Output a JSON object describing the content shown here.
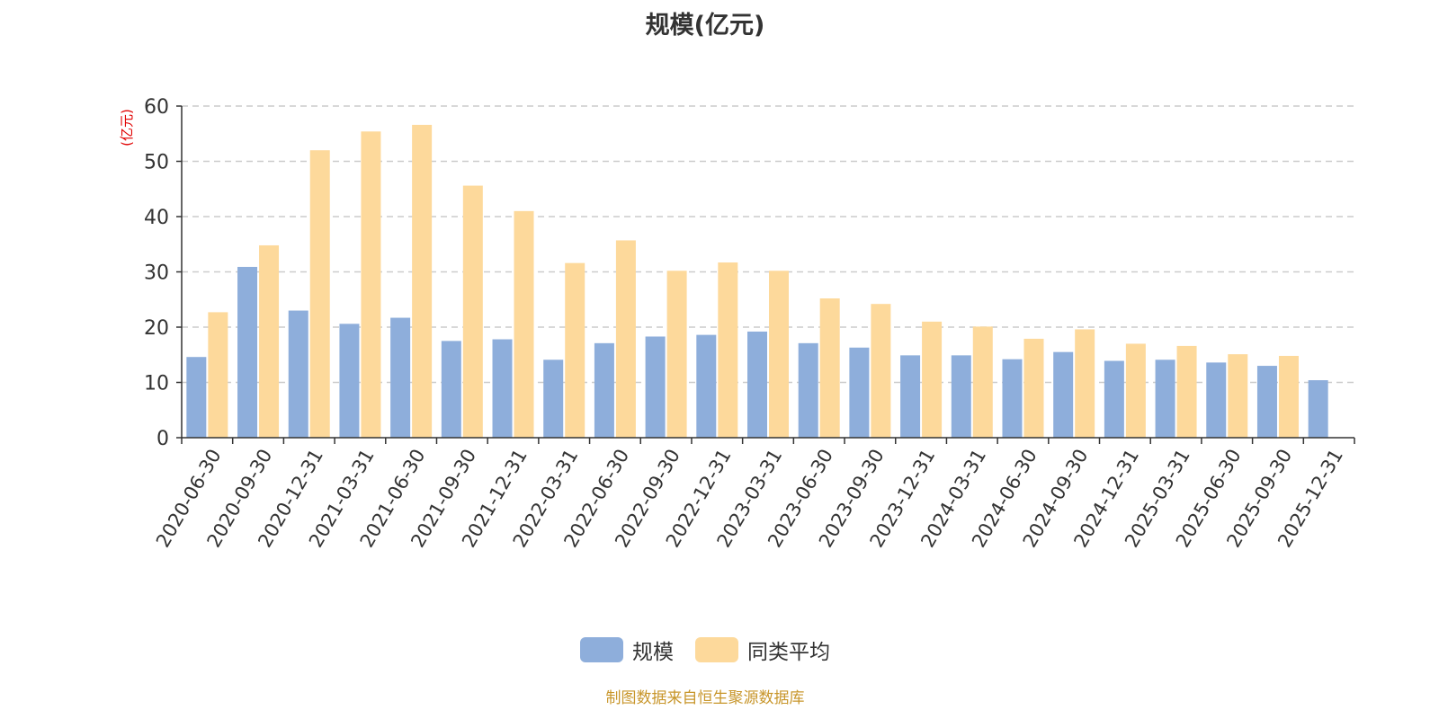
{
  "chart_data": {
    "type": "bar",
    "title": "规模(亿元)",
    "ylabel": "(亿元)",
    "ylim": [
      0,
      60
    ],
    "yticks": [
      0,
      10,
      20,
      30,
      40,
      50,
      60
    ],
    "grid": true,
    "legend_position": "bottom-center",
    "categories": [
      "2020-06-30",
      "2020-09-30",
      "2020-12-31",
      "2021-03-31",
      "2021-06-30",
      "2021-09-30",
      "2021-12-31",
      "2022-03-31",
      "2022-06-30",
      "2022-09-30",
      "2022-12-31",
      "2023-03-31",
      "2023-06-30",
      "2023-09-30",
      "2023-12-31",
      "2024-03-31",
      "2024-06-30",
      "2024-09-30",
      "2024-12-31",
      "2025-03-31",
      "2025-06-30",
      "2025-09-30",
      "2025-12-31"
    ],
    "series": [
      {
        "name": "规模",
        "color": "#8eaedb",
        "values": [
          14.6,
          30.9,
          23.0,
          20.6,
          21.7,
          17.5,
          17.8,
          14.1,
          17.1,
          18.3,
          18.6,
          19.2,
          17.1,
          16.3,
          14.9,
          14.9,
          14.2,
          15.5,
          13.9,
          14.1,
          13.6,
          13.0,
          10.4
        ]
      },
      {
        "name": "同类平均",
        "color": "#fdd99b",
        "values": [
          22.7,
          34.8,
          52.0,
          55.4,
          56.6,
          45.6,
          41.0,
          31.6,
          35.7,
          30.2,
          31.7,
          30.2,
          25.2,
          24.2,
          21.0,
          20.1,
          17.9,
          19.6,
          17.0,
          16.6,
          15.1,
          14.8,
          null
        ]
      }
    ]
  },
  "source_note": "制图数据来自恒生聚源数据库"
}
